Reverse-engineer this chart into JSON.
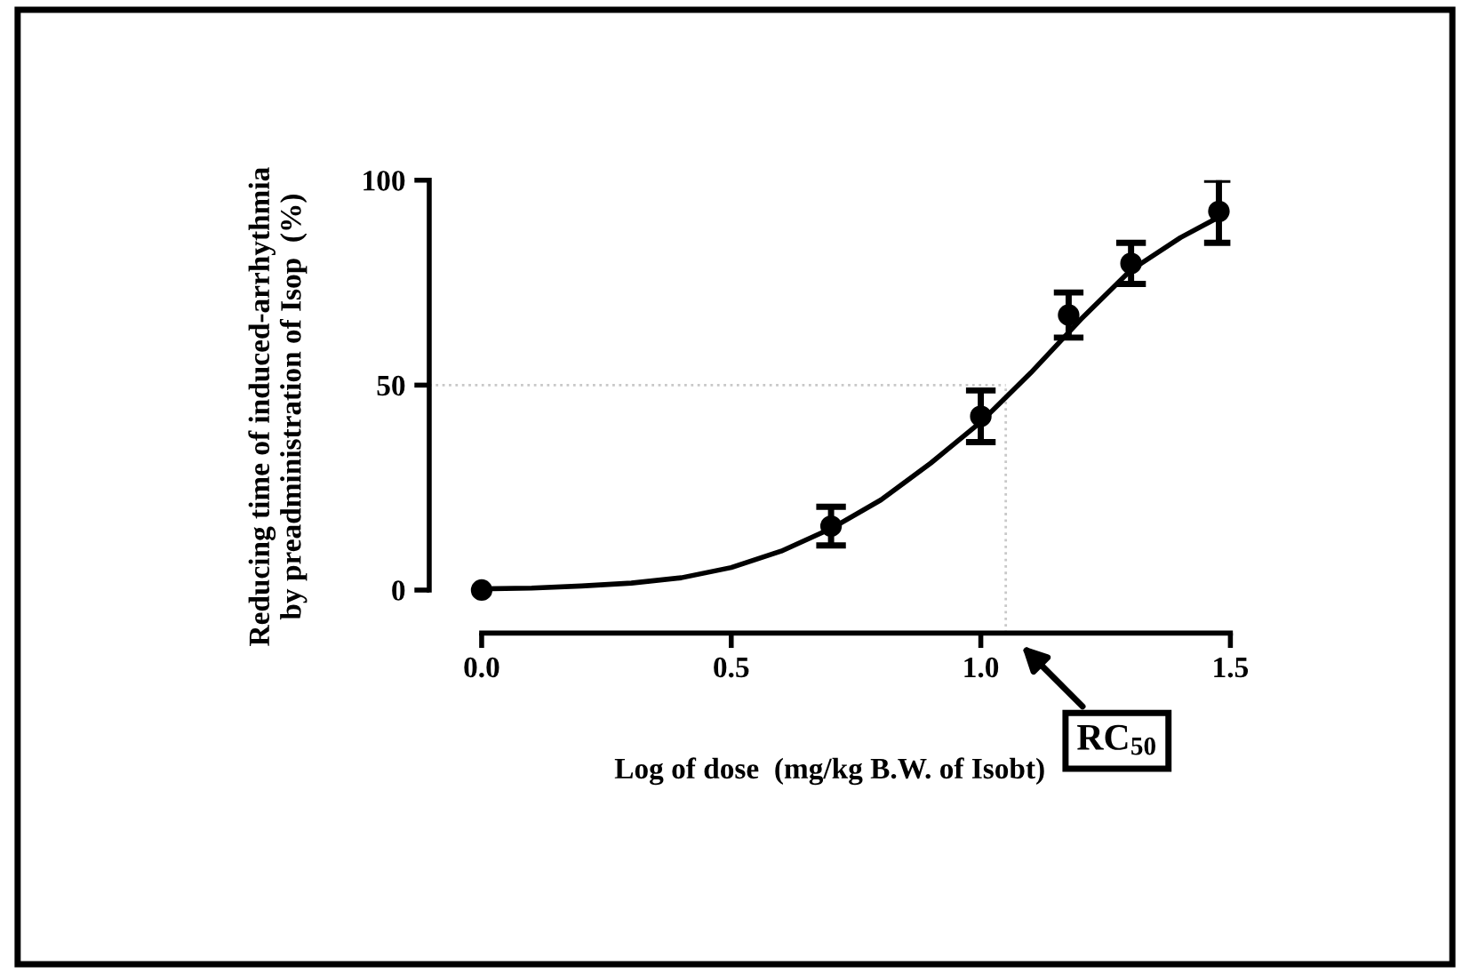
{
  "chart_data": {
    "type": "scatter",
    "xlabel": "Log of dose  (mg/kg B.W. of Isobt)",
    "ylabel": "Reducing time of induced-arrhythmia\nby preadministration of Isop  (%)",
    "xlim": [
      -0.105,
      1.5
    ],
    "ylim": [
      -10.5,
      100
    ],
    "xticks": [
      {
        "value": 0,
        "label": "0.0"
      },
      0.5,
      {
        "value": 1,
        "label": "1.0"
      },
      1.5
    ],
    "yticks": [
      0,
      50,
      100
    ],
    "grid": false,
    "series": [
      {
        "color": "#000000",
        "marker": "circle",
        "x": [
          0,
          0.7,
          1.0,
          1.176,
          1.301,
          1.477
        ],
        "values": [
          0,
          15.6,
          42.4,
          67.1,
          79.7,
          92.4
        ],
        "errors": [
          null,
          4.7,
          6.3,
          5.5,
          5,
          7.7
        ]
      },
      {
        "type": "line",
        "color": "#000000",
        "marker": "none",
        "line_style": "solid",
        "x": [
          0,
          0.1,
          0.2,
          0.3,
          0.4,
          0.5,
          0.6,
          0.7,
          0.8,
          0.9,
          1.0,
          1.05,
          1.1,
          1.2,
          1.3,
          1.4,
          1.477
        ],
        "values": [
          0.3,
          0.5,
          1,
          1.7,
          3,
          5.5,
          9.5,
          15,
          22,
          31,
          41,
          47,
          53,
          66,
          78,
          86,
          91
        ]
      }
    ],
    "ref_lines": [
      {
        "axis": "y",
        "value": 50,
        "color": "#c8c8c8",
        "line_style": "dotted"
      },
      {
        "axis": "x",
        "value": 1.05,
        "color": "#c8c8c8",
        "line_style": "dotted"
      }
    ],
    "annotations": [
      "RC$_{50}$"
    ]
  }
}
